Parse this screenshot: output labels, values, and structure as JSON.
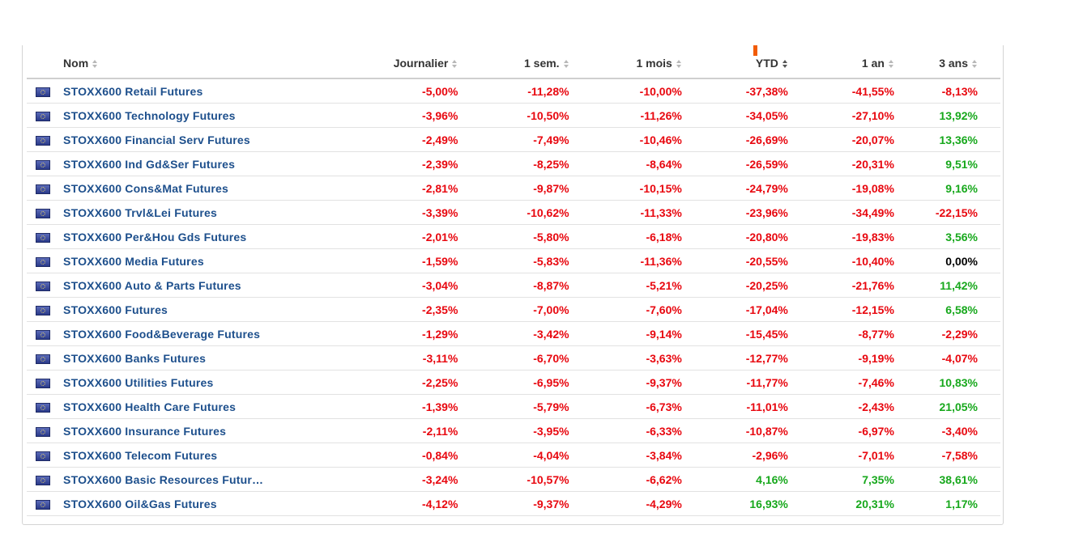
{
  "table": {
    "headers": {
      "name": "Nom",
      "daily": "Journalier",
      "week": "1 sem.",
      "month": "1 mois",
      "ytd": "YTD",
      "year": "1 an",
      "three_years": "3 ans"
    },
    "active_sort_column": "YTD",
    "colors": {
      "negative": "#e8070f",
      "positive": "#17a81c",
      "neutral": "#000000",
      "link": "#1d4f8c",
      "sort_marker": "#f25c05"
    },
    "rows": [
      {
        "name": "STOXX600 Retail Futures",
        "daily": "-5,00%",
        "week": "-11,28%",
        "month": "-10,00%",
        "ytd": "-37,38%",
        "year": "-41,55%",
        "three_years": "-8,13%"
      },
      {
        "name": "STOXX600 Technology Futures",
        "daily": "-3,96%",
        "week": "-10,50%",
        "month": "-11,26%",
        "ytd": "-34,05%",
        "year": "-27,10%",
        "three_years": "13,92%"
      },
      {
        "name": "STOXX600 Financial Serv Futures",
        "daily": "-2,49%",
        "week": "-7,49%",
        "month": "-10,46%",
        "ytd": "-26,69%",
        "year": "-20,07%",
        "three_years": "13,36%"
      },
      {
        "name": "STOXX600 Ind Gd&Ser Futures",
        "daily": "-2,39%",
        "week": "-8,25%",
        "month": "-8,64%",
        "ytd": "-26,59%",
        "year": "-20,31%",
        "three_years": "9,51%"
      },
      {
        "name": "STOXX600 Cons&Mat Futures",
        "daily": "-2,81%",
        "week": "-9,87%",
        "month": "-10,15%",
        "ytd": "-24,79%",
        "year": "-19,08%",
        "three_years": "9,16%"
      },
      {
        "name": "STOXX600 Trvl&Lei Futures",
        "daily": "-3,39%",
        "week": "-10,62%",
        "month": "-11,33%",
        "ytd": "-23,96%",
        "year": "-34,49%",
        "three_years": "-22,15%"
      },
      {
        "name": "STOXX600 Per&Hou Gds Futures",
        "daily": "-2,01%",
        "week": "-5,80%",
        "month": "-6,18%",
        "ytd": "-20,80%",
        "year": "-19,83%",
        "three_years": "3,56%"
      },
      {
        "name": "STOXX600 Media Futures",
        "daily": "-1,59%",
        "week": "-5,83%",
        "month": "-11,36%",
        "ytd": "-20,55%",
        "year": "-10,40%",
        "three_years": "0,00%"
      },
      {
        "name": "STOXX600 Auto & Parts Futures",
        "daily": "-3,04%",
        "week": "-8,87%",
        "month": "-5,21%",
        "ytd": "-20,25%",
        "year": "-21,76%",
        "three_years": "11,42%"
      },
      {
        "name": "STOXX600 Futures",
        "daily": "-2,35%",
        "week": "-7,00%",
        "month": "-7,60%",
        "ytd": "-17,04%",
        "year": "-12,15%",
        "three_years": "6,58%"
      },
      {
        "name": "STOXX600 Food&Beverage Futures",
        "daily": "-1,29%",
        "week": "-3,42%",
        "month": "-9,14%",
        "ytd": "-15,45%",
        "year": "-8,77%",
        "three_years": "-2,29%"
      },
      {
        "name": "STOXX600 Banks Futures",
        "daily": "-3,11%",
        "week": "-6,70%",
        "month": "-3,63%",
        "ytd": "-12,77%",
        "year": "-9,19%",
        "three_years": "-4,07%"
      },
      {
        "name": "STOXX600 Utilities Futures",
        "daily": "-2,25%",
        "week": "-6,95%",
        "month": "-9,37%",
        "ytd": "-11,77%",
        "year": "-7,46%",
        "three_years": "10,83%"
      },
      {
        "name": "STOXX600 Health Care Futures",
        "daily": "-1,39%",
        "week": "-5,79%",
        "month": "-6,73%",
        "ytd": "-11,01%",
        "year": "-2,43%",
        "three_years": "21,05%"
      },
      {
        "name": "STOXX600 Insurance Futures",
        "daily": "-2,11%",
        "week": "-3,95%",
        "month": "-6,33%",
        "ytd": "-10,87%",
        "year": "-6,97%",
        "three_years": "-3,40%"
      },
      {
        "name": "STOXX600 Telecom Futures",
        "daily": "-0,84%",
        "week": "-4,04%",
        "month": "-3,84%",
        "ytd": "-2,96%",
        "year": "-7,01%",
        "three_years": "-7,58%"
      },
      {
        "name": "STOXX600 Basic Resources Futur…",
        "daily": "-3,24%",
        "week": "-10,57%",
        "month": "-6,62%",
        "ytd": "4,16%",
        "year": "7,35%",
        "three_years": "38,61%"
      },
      {
        "name": "STOXX600 Oil&Gas Futures",
        "daily": "-4,12%",
        "week": "-9,37%",
        "month": "-4,29%",
        "ytd": "16,93%",
        "year": "20,31%",
        "three_years": "1,17%"
      }
    ]
  }
}
